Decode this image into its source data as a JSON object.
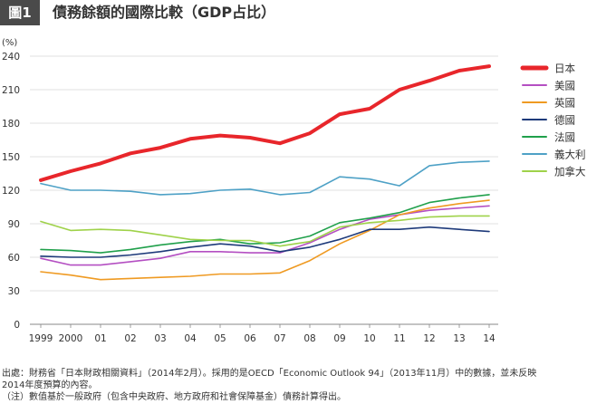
{
  "figure": {
    "badge": "圖1",
    "title": "債務餘額的國際比較（GDP占比）"
  },
  "chart_data": {
    "type": "line",
    "title": "債務餘額的國際比較（GDP占比）",
    "ylabel": "(%)",
    "ylim": [
      0,
      240
    ],
    "yticks": [
      0,
      30,
      60,
      90,
      120,
      150,
      180,
      210,
      240
    ],
    "grid": true,
    "legend_position": "right",
    "x_tick_labels": [
      "1999",
      "2000",
      "01",
      "02",
      "03",
      "04",
      "05",
      "06",
      "07",
      "08",
      "09",
      "10",
      "11",
      "12",
      "13",
      "14"
    ],
    "x": [
      1999,
      2000,
      2001,
      2002,
      2003,
      2004,
      2005,
      2006,
      2007,
      2008,
      2009,
      2010,
      2011,
      2012,
      2013,
      2014
    ],
    "series": [
      {
        "name": "日本",
        "color": "#e8262b",
        "width": 4,
        "values": [
          129,
          137,
          144,
          153,
          158,
          166,
          169,
          167,
          162,
          171,
          188,
          193,
          210,
          218,
          227,
          231
        ]
      },
      {
        "name": "美國",
        "color": "#b44fc2",
        "width": 1.6,
        "values": [
          59,
          53,
          53,
          56,
          59,
          65,
          65,
          64,
          64,
          73,
          85,
          94,
          98,
          102,
          104,
          106
        ]
      },
      {
        "name": "英國",
        "color": "#ef9a22",
        "width": 1.6,
        "values": [
          47,
          44,
          40,
          41,
          42,
          43,
          45,
          45,
          46,
          57,
          72,
          84,
          98,
          104,
          108,
          111
        ]
      },
      {
        "name": "德國",
        "color": "#1e3a7a",
        "width": 1.6,
        "values": [
          61,
          60,
          60,
          62,
          65,
          69,
          72,
          70,
          65,
          69,
          76,
          85,
          85,
          87,
          85,
          83
        ]
      },
      {
        "name": "法國",
        "color": "#20a04b",
        "width": 1.6,
        "values": [
          67,
          66,
          64,
          67,
          71,
          74,
          76,
          72,
          73,
          79,
          91,
          95,
          100,
          109,
          113,
          116
        ]
      },
      {
        "name": "義大利",
        "color": "#4ea1c6",
        "width": 1.6,
        "values": [
          126,
          120,
          120,
          119,
          116,
          117,
          120,
          121,
          116,
          118,
          132,
          130,
          124,
          142,
          145,
          146
        ]
      },
      {
        "name": "加拿大",
        "color": "#9fd24a",
        "width": 1.6,
        "values": [
          92,
          84,
          85,
          84,
          80,
          76,
          75,
          75,
          70,
          74,
          87,
          91,
          93,
          96,
          97,
          97
        ]
      }
    ]
  },
  "notes": {
    "source_line1": "出處：財務省「日本財政相關資料」（2014年2月）。採用的是OECD「Economic Outlook 94」（2013年11月）中的數據，並未反映",
    "source_line2": "2014年度預算的內容。",
    "note_line": "（注）數值基於一般政府（包含中央政府、地方政府和社會保障基金）債務計算得出。"
  }
}
